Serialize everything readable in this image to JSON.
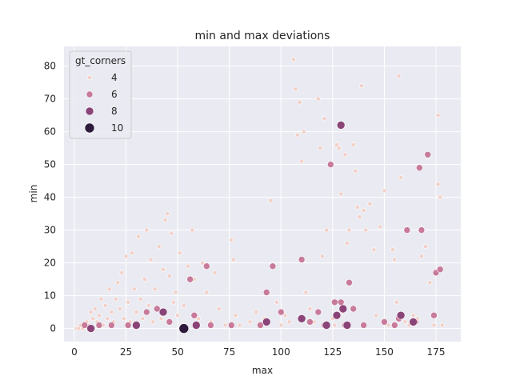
{
  "chart_data": {
    "type": "scatter",
    "title": "min and max deviations",
    "xlabel": "max",
    "ylabel": "min",
    "xlim": [
      -5,
      187
    ],
    "ylim": [
      -4,
      86
    ],
    "xticks": [
      0,
      25,
      50,
      75,
      100,
      125,
      150,
      175
    ],
    "yticks": [
      0,
      10,
      20,
      30,
      40,
      50,
      60,
      70,
      80
    ],
    "grid": true,
    "legend": {
      "title": "gt_corners",
      "placement": "top-left",
      "entries": [
        {
          "label": "4",
          "color": "#f1d0c8"
        },
        {
          "label": "6",
          "color": "#c77a99"
        },
        {
          "label": "8",
          "color": "#8a4477"
        },
        {
          "label": "10",
          "color": "#2e1a3c"
        }
      ]
    },
    "series": [
      {
        "name": "4",
        "color": "#f1d0c8",
        "points": [
          [
            1,
            0
          ],
          [
            2,
            0
          ],
          [
            3,
            1
          ],
          [
            4,
            0
          ],
          [
            5,
            1
          ],
          [
            6,
            2
          ],
          [
            7,
            1
          ],
          [
            8,
            5
          ],
          [
            9,
            3
          ],
          [
            10,
            6
          ],
          [
            11,
            2
          ],
          [
            12,
            4
          ],
          [
            13,
            9
          ],
          [
            14,
            1
          ],
          [
            15,
            7
          ],
          [
            16,
            3
          ],
          [
            17,
            12
          ],
          [
            18,
            5
          ],
          [
            19,
            2
          ],
          [
            20,
            9
          ],
          [
            21,
            14
          ],
          [
            22,
            6
          ],
          [
            23,
            17
          ],
          [
            24,
            3
          ],
          [
            25,
            22
          ],
          [
            26,
            8
          ],
          [
            27,
            2
          ],
          [
            28,
            23
          ],
          [
            29,
            12
          ],
          [
            30,
            5
          ],
          [
            31,
            28
          ],
          [
            32,
            9
          ],
          [
            33,
            3
          ],
          [
            34,
            15
          ],
          [
            35,
            30
          ],
          [
            36,
            7
          ],
          [
            37,
            21
          ],
          [
            38,
            2
          ],
          [
            39,
            12
          ],
          [
            40,
            6
          ],
          [
            41,
            25
          ],
          [
            42,
            3
          ],
          [
            43,
            18
          ],
          [
            44,
            33
          ],
          [
            45,
            35
          ],
          [
            46,
            16
          ],
          [
            47,
            29
          ],
          [
            48,
            8
          ],
          [
            49,
            11
          ],
          [
            50,
            4
          ],
          [
            51,
            23
          ],
          [
            52,
            1
          ],
          [
            53,
            7
          ],
          [
            55,
            19
          ],
          [
            57,
            30
          ],
          [
            58,
            15
          ],
          [
            60,
            3
          ],
          [
            62,
            20
          ],
          [
            64,
            11
          ],
          [
            66,
            2
          ],
          [
            68,
            17
          ],
          [
            70,
            6
          ],
          [
            73,
            1
          ],
          [
            76,
            27
          ],
          [
            77,
            21
          ],
          [
            78,
            4
          ],
          [
            80,
            1
          ],
          [
            85,
            2
          ],
          [
            88,
            5
          ],
          [
            92,
            3
          ],
          [
            95,
            39
          ],
          [
            98,
            8
          ],
          [
            100,
            1
          ],
          [
            102,
            4
          ],
          [
            104,
            2
          ],
          [
            106,
            82
          ],
          [
            107,
            73
          ],
          [
            108,
            59
          ],
          [
            109,
            69
          ],
          [
            110,
            51
          ],
          [
            111,
            60
          ],
          [
            112,
            11
          ],
          [
            114,
            6
          ],
          [
            116,
            2
          ],
          [
            118,
            70
          ],
          [
            119,
            55
          ],
          [
            120,
            22
          ],
          [
            121,
            64
          ],
          [
            122,
            30
          ],
          [
            125,
            3
          ],
          [
            126,
            1
          ],
          [
            127,
            56
          ],
          [
            128,
            55
          ],
          [
            129,
            41
          ],
          [
            130,
            5
          ],
          [
            131,
            53
          ],
          [
            132,
            26
          ],
          [
            133,
            30
          ],
          [
            135,
            56
          ],
          [
            136,
            48
          ],
          [
            137,
            37
          ],
          [
            138,
            34
          ],
          [
            139,
            74
          ],
          [
            140,
            36
          ],
          [
            141,
            30
          ],
          [
            143,
            38
          ],
          [
            145,
            24
          ],
          [
            146,
            4
          ],
          [
            148,
            31
          ],
          [
            150,
            42
          ],
          [
            152,
            1
          ],
          [
            154,
            24
          ],
          [
            155,
            21
          ],
          [
            156,
            8
          ],
          [
            157,
            77
          ],
          [
            158,
            46
          ],
          [
            160,
            2
          ],
          [
            162,
            1
          ],
          [
            164,
            4
          ],
          [
            166,
            3
          ],
          [
            168,
            22
          ],
          [
            170,
            25
          ],
          [
            172,
            14
          ],
          [
            174,
            1
          ],
          [
            176,
            65
          ],
          [
            176,
            44
          ],
          [
            177,
            40
          ],
          [
            178,
            1
          ]
        ]
      },
      {
        "name": "6",
        "color": "#c77a99",
        "points": [
          [
            5,
            1
          ],
          [
            12,
            1
          ],
          [
            18,
            1
          ],
          [
            26,
            1
          ],
          [
            35,
            5
          ],
          [
            40,
            6
          ],
          [
            46,
            2
          ],
          [
            56,
            15
          ],
          [
            58,
            4
          ],
          [
            64,
            19
          ],
          [
            66,
            1
          ],
          [
            76,
            1
          ],
          [
            90,
            1
          ],
          [
            93,
            11
          ],
          [
            96,
            19
          ],
          [
            100,
            5
          ],
          [
            110,
            21
          ],
          [
            114,
            2
          ],
          [
            118,
            5
          ],
          [
            121,
            1
          ],
          [
            124,
            50
          ],
          [
            126,
            8
          ],
          [
            129,
            8
          ],
          [
            131,
            1
          ],
          [
            133,
            14
          ],
          [
            135,
            6
          ],
          [
            140,
            1
          ],
          [
            150,
            2
          ],
          [
            155,
            1
          ],
          [
            157,
            3
          ],
          [
            161,
            30
          ],
          [
            165,
            2
          ],
          [
            167,
            49
          ],
          [
            168,
            30
          ],
          [
            171,
            53
          ],
          [
            174,
            4
          ],
          [
            175,
            17
          ],
          [
            177,
            18
          ]
        ]
      },
      {
        "name": "8",
        "color": "#8a4477",
        "points": [
          [
            8,
            0
          ],
          [
            30,
            1
          ],
          [
            43,
            5
          ],
          [
            59,
            1
          ],
          [
            93,
            2
          ],
          [
            110,
            3
          ],
          [
            122,
            1
          ],
          [
            127,
            4
          ],
          [
            129,
            62
          ],
          [
            130,
            6
          ],
          [
            132,
            1
          ],
          [
            158,
            4
          ],
          [
            164,
            2
          ]
        ]
      },
      {
        "name": "10",
        "color": "#2e1a3c",
        "points": [
          [
            53,
            0
          ]
        ]
      }
    ]
  }
}
